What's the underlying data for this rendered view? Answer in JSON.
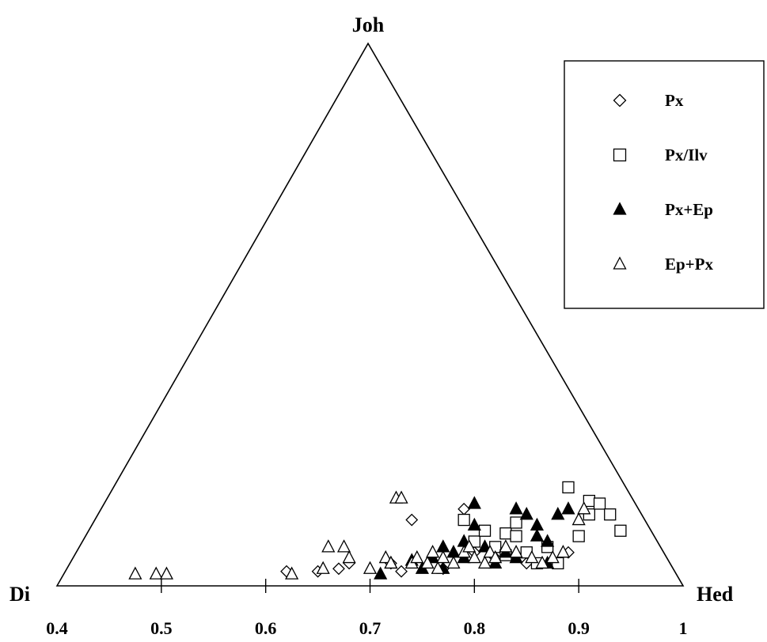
{
  "chart_data": {
    "type": "scatter",
    "title": "",
    "vertices": {
      "top": "Joh",
      "left": "Di",
      "right": "Hed"
    },
    "x_axis": {
      "range": [
        0.4,
        1
      ],
      "ticks": [
        0.4,
        0.5,
        0.6,
        0.7,
        0.8,
        0.9,
        1
      ]
    },
    "legend_position": "top-right",
    "series": [
      {
        "name": "Px",
        "marker": "diamond-open",
        "points": [
          [
            0.62,
            0.015
          ],
          [
            0.65,
            0.015
          ],
          [
            0.67,
            0.02
          ],
          [
            0.68,
            0.03
          ],
          [
            0.72,
            0.03
          ],
          [
            0.73,
            0.015
          ],
          [
            0.74,
            0.11
          ],
          [
            0.77,
            0.02
          ],
          [
            0.79,
            0.13
          ],
          [
            0.8,
            0.05
          ],
          [
            0.82,
            0.04
          ],
          [
            0.85,
            0.03
          ],
          [
            0.89,
            0.05
          ]
        ]
      },
      {
        "name": "Px/Ilv",
        "marker": "square-open",
        "points": [
          [
            0.79,
            0.11
          ],
          [
            0.8,
            0.07
          ],
          [
            0.81,
            0.09
          ],
          [
            0.82,
            0.06
          ],
          [
            0.83,
            0.085
          ],
          [
            0.84,
            0.105
          ],
          [
            0.84,
            0.08
          ],
          [
            0.85,
            0.05
          ],
          [
            0.86,
            0.03
          ],
          [
            0.87,
            0.06
          ],
          [
            0.88,
            0.03
          ],
          [
            0.89,
            0.17
          ],
          [
            0.9,
            0.08
          ],
          [
            0.91,
            0.12
          ],
          [
            0.91,
            0.145
          ],
          [
            0.92,
            0.14
          ],
          [
            0.93,
            0.12
          ],
          [
            0.94,
            0.09
          ],
          [
            0.83,
            0.045
          ]
        ]
      },
      {
        "name": "Px+Ep",
        "marker": "triangle-filled",
        "points": [
          [
            0.71,
            0.01
          ],
          [
            0.72,
            0.03
          ],
          [
            0.74,
            0.035
          ],
          [
            0.75,
            0.02
          ],
          [
            0.76,
            0.04
          ],
          [
            0.77,
            0.06
          ],
          [
            0.77,
            0.02
          ],
          [
            0.78,
            0.05
          ],
          [
            0.79,
            0.04
          ],
          [
            0.79,
            0.07
          ],
          [
            0.8,
            0.14
          ],
          [
            0.8,
            0.1
          ],
          [
            0.81,
            0.06
          ],
          [
            0.82,
            0.03
          ],
          [
            0.83,
            0.05
          ],
          [
            0.84,
            0.13
          ],
          [
            0.84,
            0.04
          ],
          [
            0.85,
            0.12
          ],
          [
            0.86,
            0.1
          ],
          [
            0.86,
            0.08
          ],
          [
            0.87,
            0.07
          ],
          [
            0.87,
            0.03
          ],
          [
            0.88,
            0.12
          ],
          [
            0.89,
            0.13
          ]
        ]
      },
      {
        "name": "Ep+Px",
        "marker": "triangle-open",
        "points": [
          [
            0.475,
            0.01
          ],
          [
            0.495,
            0.01
          ],
          [
            0.505,
            0.01
          ],
          [
            0.625,
            0.01
          ],
          [
            0.655,
            0.02
          ],
          [
            0.66,
            0.06
          ],
          [
            0.675,
            0.06
          ],
          [
            0.68,
            0.04
          ],
          [
            0.7,
            0.02
          ],
          [
            0.715,
            0.04
          ],
          [
            0.72,
            0.03
          ],
          [
            0.725,
            0.15
          ],
          [
            0.73,
            0.15
          ],
          [
            0.74,
            0.03
          ],
          [
            0.745,
            0.04
          ],
          [
            0.755,
            0.03
          ],
          [
            0.76,
            0.05
          ],
          [
            0.765,
            0.02
          ],
          [
            0.77,
            0.04
          ],
          [
            0.78,
            0.03
          ],
          [
            0.79,
            0.05
          ],
          [
            0.795,
            0.06
          ],
          [
            0.8,
            0.04
          ],
          [
            0.81,
            0.03
          ],
          [
            0.815,
            0.05
          ],
          [
            0.82,
            0.04
          ],
          [
            0.83,
            0.06
          ],
          [
            0.84,
            0.05
          ],
          [
            0.855,
            0.04
          ],
          [
            0.865,
            0.03
          ],
          [
            0.875,
            0.04
          ],
          [
            0.885,
            0.05
          ],
          [
            0.9,
            0.11
          ],
          [
            0.905,
            0.13
          ]
        ]
      }
    ]
  }
}
